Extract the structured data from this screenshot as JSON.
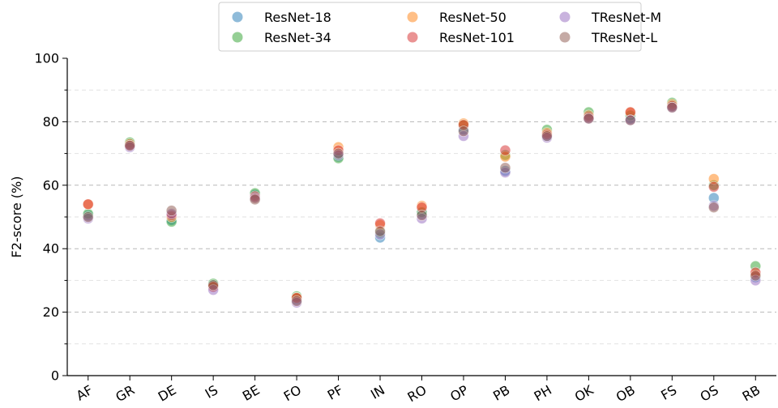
{
  "chart_data": {
    "type": "scatter",
    "categories": [
      "AF",
      "GR",
      "DE",
      "IS",
      "BE",
      "FO",
      "PF",
      "IN",
      "RO",
      "OP",
      "PB",
      "PH",
      "OK",
      "OB",
      "FS",
      "OS",
      "RB"
    ],
    "ylabel": "F2-score (%)",
    "xlabel": "",
    "ylim": [
      0,
      100
    ],
    "yticks": [
      0,
      20,
      40,
      60,
      80,
      100
    ],
    "grid": "horizontal dashed",
    "legend_position": "top-center",
    "series": [
      {
        "name": "ResNet-18",
        "color": "#1f77b4",
        "values": [
          50.5,
          73.0,
          49.0,
          28.5,
          57.0,
          24.0,
          69.0,
          43.5,
          51.0,
          77.5,
          64.5,
          75.5,
          82.0,
          81.0,
          85.0,
          56.0,
          31.0
        ]
      },
      {
        "name": "ResNet-34",
        "color": "#2ca02c",
        "values": [
          51.0,
          73.5,
          48.5,
          29.0,
          57.5,
          25.0,
          68.5,
          45.0,
          51.5,
          79.0,
          69.5,
          77.5,
          83.0,
          82.0,
          86.0,
          60.0,
          34.5
        ]
      },
      {
        "name": "ResNet-50",
        "color": "#ff7f0e",
        "values": [
          54.0,
          73.0,
          50.0,
          28.0,
          56.0,
          24.5,
          72.0,
          47.5,
          53.5,
          79.5,
          69.0,
          76.5,
          82.0,
          83.0,
          85.5,
          62.0,
          32.0
        ]
      },
      {
        "name": "ResNet-101",
        "color": "#d62728",
        "values": [
          54.0,
          72.5,
          50.5,
          28.0,
          56.5,
          24.5,
          71.0,
          48.0,
          53.0,
          79.0,
          71.0,
          76.0,
          81.5,
          83.0,
          85.0,
          59.5,
          32.5
        ]
      },
      {
        "name": "TResNet-M",
        "color": "#9467bd",
        "values": [
          49.5,
          72.0,
          51.0,
          27.0,
          56.0,
          23.0,
          69.5,
          44.5,
          49.5,
          75.5,
          64.0,
          75.0,
          81.0,
          80.5,
          84.5,
          53.5,
          30.0
        ]
      },
      {
        "name": "TResNet-L",
        "color": "#8c564b",
        "values": [
          50.0,
          72.5,
          52.0,
          28.5,
          55.5,
          23.5,
          70.0,
          45.5,
          50.5,
          77.0,
          65.5,
          75.5,
          81.0,
          80.5,
          84.5,
          53.0,
          31.5
        ]
      }
    ]
  }
}
